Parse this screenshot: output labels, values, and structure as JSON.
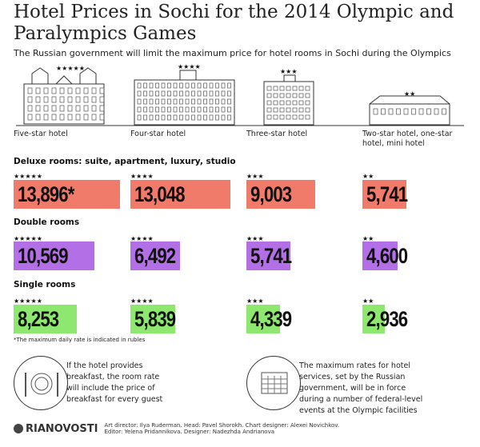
{
  "title": "Hotel Prices in Sochi for the 2014 Olympic and Paralympics Games",
  "subtitle": "The Russian government will limit the maximum price for hotel rooms in Sochi during the Olympics",
  "hotel_types": [
    {
      "label": "Five-star hotel",
      "stars": "★★★★★"
    },
    {
      "label": "Four-star hotel",
      "stars": "★★★★"
    },
    {
      "label": "Three-star hotel",
      "stars": "★★★"
    },
    {
      "label": "Two-star hotel, one-star hotel, mini hotel",
      "stars": "★★"
    }
  ],
  "chart_data": {
    "type": "bar",
    "categories": [
      "Five-star hotel",
      "Four-star hotel",
      "Three-star hotel",
      "Two-star hotel, one-star hotel, mini hotel"
    ],
    "series": [
      {
        "name": "Deluxe rooms: suite, apartment, luxury, studio",
        "color": "#f07b6a",
        "values": [
          13896,
          13048,
          9003,
          5741
        ],
        "labels": [
          "13,896*",
          "13,048",
          "9,003",
          "5,741"
        ]
      },
      {
        "name": "Double rooms",
        "color": "#b36fe6",
        "values": [
          10569,
          6492,
          5741,
          4600
        ],
        "labels": [
          "10,569",
          "6,492",
          "5,741",
          "4,600"
        ]
      },
      {
        "name": "Single rooms",
        "color": "#8ee86f",
        "values": [
          8253,
          5839,
          4339,
          2936
        ],
        "labels": [
          "8,253",
          "5,839",
          "4,339",
          "2,936"
        ]
      }
    ],
    "footnote": "*The maximum daily rate is indicated in rubles"
  },
  "info": [
    {
      "icon": "plate-fork-knife-icon",
      "text": "If the hotel provides breakfast, the room rate will include the price of breakfast for every guest"
    },
    {
      "icon": "calendar-icon",
      "text": "The maximum rates for hotel services, set by the Russian government, will be in force during a number of federal-level events at the Olympic facilities"
    }
  ],
  "footer": {
    "logo": "RIANOVOSTI",
    "credits_1": "Art director: Ilya Ruderman. Head: Pavel Shorokh. Chart designer: Alexei Novichkov.",
    "credits_2": "Editor: Yelena Pridannikova. Designer: Nadezhda Andrianova"
  }
}
